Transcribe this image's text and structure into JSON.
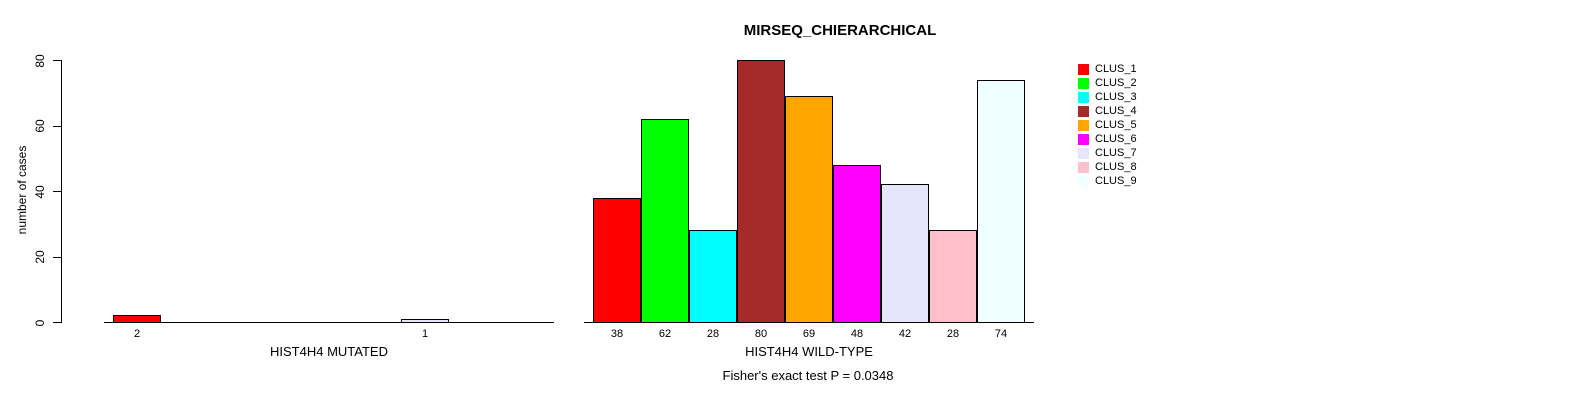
{
  "chart_data": {
    "type": "bar",
    "title": "MIRSEQ_CHIERARCHICAL",
    "ylabel": "number of cases",
    "ylim": [
      0,
      80
    ],
    "yticks": [
      0,
      20,
      40,
      60,
      80
    ],
    "grid": false,
    "legend_position": "right-outside",
    "bar_border_color": "#000000",
    "clusters": [
      {
        "name": "CLUS_1",
        "color": "#FF0000"
      },
      {
        "name": "CLUS_2",
        "color": "#00FF00"
      },
      {
        "name": "CLUS_3",
        "color": "#00FFFF"
      },
      {
        "name": "CLUS_4",
        "color": "#A52A2A"
      },
      {
        "name": "CLUS_5",
        "color": "#FFA500"
      },
      {
        "name": "CLUS_6",
        "color": "#FF00FF"
      },
      {
        "name": "CLUS_7",
        "color": "#E6E6FA"
      },
      {
        "name": "CLUS_8",
        "color": "#FFC0CB"
      },
      {
        "name": "CLUS_9",
        "color": "#F0FFFF"
      }
    ],
    "groups": [
      {
        "label": "HIST4H4 MUTATED",
        "values": [
          2,
          0,
          0,
          0,
          0,
          0,
          1,
          0,
          0
        ]
      },
      {
        "label": "HIST4H4 WILD-TYPE",
        "values": [
          38,
          62,
          28,
          80,
          69,
          48,
          42,
          28,
          74
        ]
      }
    ],
    "annotation": "Fisher's exact test P = 0.0348"
  }
}
